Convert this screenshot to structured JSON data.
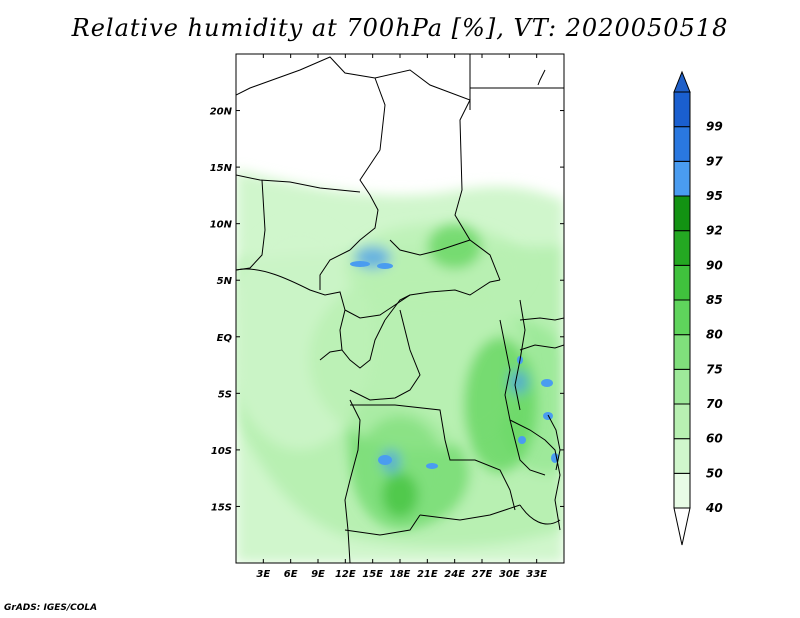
{
  "title": "Relative humidity at 700hPa [%], VT: 2020050518",
  "credit": "GrADS: IGES/COLA",
  "map": {
    "lon_range": [
      0,
      36
    ],
    "lat_range": [
      -20,
      25
    ],
    "lon_ticks": [
      {
        "value": 3,
        "label": "3E"
      },
      {
        "value": 6,
        "label": "6E"
      },
      {
        "value": 9,
        "label": "9E"
      },
      {
        "value": 12,
        "label": "12E"
      },
      {
        "value": 15,
        "label": "15E"
      },
      {
        "value": 18,
        "label": "18E"
      },
      {
        "value": 21,
        "label": "21E"
      },
      {
        "value": 24,
        "label": "24E"
      },
      {
        "value": 27,
        "label": "27E"
      },
      {
        "value": 30,
        "label": "30E"
      },
      {
        "value": 33,
        "label": "33E"
      }
    ],
    "lat_ticks": [
      {
        "value": 20,
        "label": "20N"
      },
      {
        "value": 15,
        "label": "15N"
      },
      {
        "value": 10,
        "label": "10N"
      },
      {
        "value": 5,
        "label": "5N"
      },
      {
        "value": 0,
        "label": "EQ"
      },
      {
        "value": -5,
        "label": "5S"
      },
      {
        "value": -10,
        "label": "10S"
      },
      {
        "value": -15,
        "label": "15S"
      }
    ]
  },
  "colorbar": {
    "bins": [
      {
        "label": "40",
        "color": "#e8fce6"
      },
      {
        "label": "50",
        "color": "#d0f6cc"
      },
      {
        "label": "60",
        "color": "#b8f0b2"
      },
      {
        "label": "70",
        "color": "#9ee99a"
      },
      {
        "label": "75",
        "color": "#80df7c"
      },
      {
        "label": "80",
        "color": "#5fd45c"
      },
      {
        "label": "85",
        "color": "#40c23d"
      },
      {
        "label": "90",
        "color": "#24a822"
      },
      {
        "label": "92",
        "color": "#129212"
      },
      {
        "label": "95",
        "color": "#4a9cf0"
      },
      {
        "label": "97",
        "color": "#2a78e0"
      },
      {
        "label": "99",
        "color": "#1a5fcf"
      }
    ],
    "top_arrow_color": "#2060c8",
    "bottom_arrow_color": "#ffffff"
  },
  "fields": [
    {
      "lon": 7,
      "lat": 0,
      "rx": 8,
      "ry": 10,
      "level": 1
    },
    {
      "lon": 20,
      "lat": -2,
      "rx": 12,
      "ry": 8,
      "level": 2
    },
    {
      "lon": 22,
      "lat": 6,
      "rx": 10,
      "ry": 4,
      "level": 2
    },
    {
      "lon": 18,
      "lat": -12,
      "rx": 5,
      "ry": 5,
      "level": 4
    },
    {
      "lon": 29,
      "lat": -6,
      "rx": 4,
      "ry": 6,
      "level": 5
    },
    {
      "lon": 24,
      "lat": 8,
      "rx": 3,
      "ry": 2,
      "level": 5
    },
    {
      "lon": 18,
      "lat": -14,
      "rx": 2,
      "ry": 2,
      "level": 6
    },
    {
      "lon": 15,
      "lat": 7,
      "rx": 2,
      "ry": 1,
      "level": 9
    },
    {
      "lon": 17,
      "lat": -11,
      "rx": 1,
      "ry": 1,
      "level": 9
    },
    {
      "lon": 31,
      "lat": -4,
      "rx": 1,
      "ry": 1,
      "level": 9
    }
  ]
}
